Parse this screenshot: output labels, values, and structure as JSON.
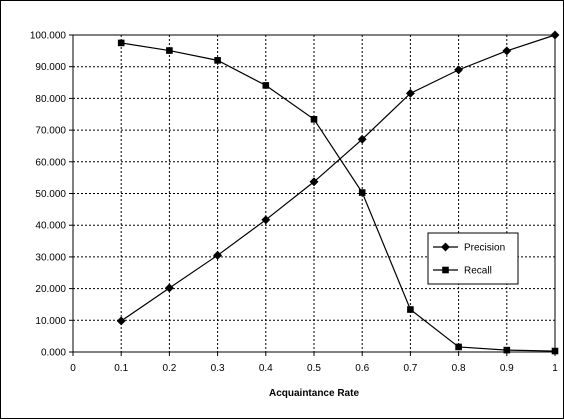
{
  "chart_data": {
    "type": "line",
    "title": "",
    "xlabel": "Acquaintance Rate",
    "ylabel": "",
    "xlim": [
      0,
      1
    ],
    "ylim": [
      0,
      100
    ],
    "grid": true,
    "legend_position": "right",
    "x_ticks": [
      "0",
      "0.1",
      "0.2",
      "0.3",
      "0.4",
      "0.5",
      "0.6",
      "0.7",
      "0.8",
      "0.9",
      "1"
    ],
    "y_ticks": [
      "0.000",
      "10.000",
      "20.000",
      "30.000",
      "40.000",
      "50.000",
      "60.000",
      "70.000",
      "80.000",
      "90.000",
      "100.000"
    ],
    "x": [
      0.1,
      0.2,
      0.3,
      0.4,
      0.5,
      0.6,
      0.7,
      0.8,
      0.9,
      1.0
    ],
    "series": [
      {
        "name": "Precision",
        "marker": "diamond",
        "color": "#000000",
        "values": [
          9.8,
          20.2,
          30.5,
          41.7,
          53.7,
          67.1,
          81.6,
          89.0,
          95.0,
          100.0
        ]
      },
      {
        "name": "Recall",
        "marker": "square",
        "color": "#000000",
        "values": [
          97.5,
          95.1,
          92.0,
          84.1,
          73.4,
          50.3,
          13.4,
          1.6,
          0.6,
          0.3
        ]
      }
    ]
  }
}
